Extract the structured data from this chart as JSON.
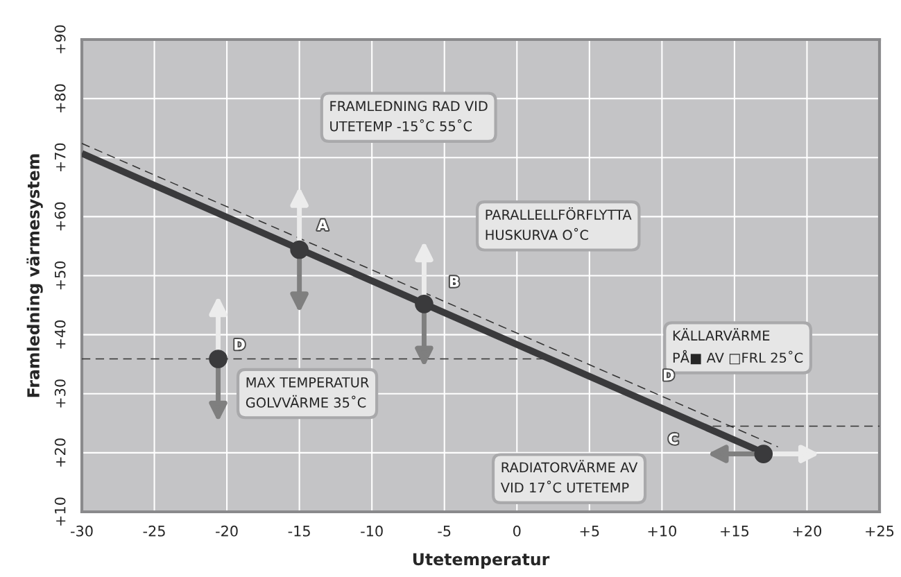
{
  "chart_data": {
    "type": "line",
    "xlabel": "Utetemperatur",
    "ylabel": "Framledning värmesystem",
    "series": [
      {
        "color": "#3a3a3c",
        "line_style": "solid",
        "x": [
          -30,
          17
        ],
        "values": [
          70.7,
          20
        ]
      },
      {
        "color": "#333333",
        "line_style": "dashed",
        "x": [
          -30,
          18
        ],
        "values": [
          72.4,
          21
        ]
      },
      {
        "color": "#333333",
        "line_style": "dashed",
        "x": [
          -30,
          2
        ],
        "values": [
          35.9,
          35.9
        ]
      },
      {
        "color": "#333333",
        "line_style": "dashed",
        "x": [
          13.5,
          25
        ],
        "values": [
          24.5,
          24.5
        ]
      },
      {
        "type": "scatter",
        "color": "#3a3a3c",
        "marker": "circle",
        "x": [
          -15,
          -6.4,
          17,
          -20.6
        ],
        "values": [
          54.4,
          45.2,
          19.8,
          35.9
        ]
      }
    ],
    "annotations": [
      "FRAMLEDNING RAD VID\nUTETEMP -15˚C 55˚C",
      "PARALLELLFÖRFLYTTA\nHUSKURVA O˚C",
      "MAX TEMPERATUR\nGOLVVÄRME 35˚C",
      "KÄLLARVÄRME\nPÅ■ AV □FRL 25˚C",
      "RADIATORVÄRME AV\nVID 17˚C UTETEMP",
      "A",
      "B",
      "C",
      "D",
      "D"
    ],
    "xlim": [
      -30,
      25
    ],
    "xticks": [
      -30,
      -25,
      -20,
      -15,
      -10,
      -5,
      0,
      {
        "value": 5,
        "label": "+5"
      },
      {
        "value": 10,
        "label": "+10"
      },
      {
        "value": 15,
        "label": "+15"
      },
      {
        "value": 20,
        "label": "+20"
      },
      {
        "value": 25,
        "label": "+25"
      }
    ],
    "ylim": [
      10,
      90
    ],
    "yticks": [
      {
        "value": 10,
        "label": "+10"
      },
      {
        "value": 20,
        "label": "+20"
      },
      {
        "value": 30,
        "label": "+30"
      },
      {
        "value": 40,
        "label": "+40"
      },
      {
        "value": 50,
        "label": "+50"
      },
      {
        "value": 60,
        "label": "+60"
      },
      {
        "value": 70,
        "label": "+70"
      },
      {
        "value": 80,
        "label": "+80"
      },
      {
        "value": 90,
        "label": "+90"
      }
    ],
    "grid": true
  }
}
